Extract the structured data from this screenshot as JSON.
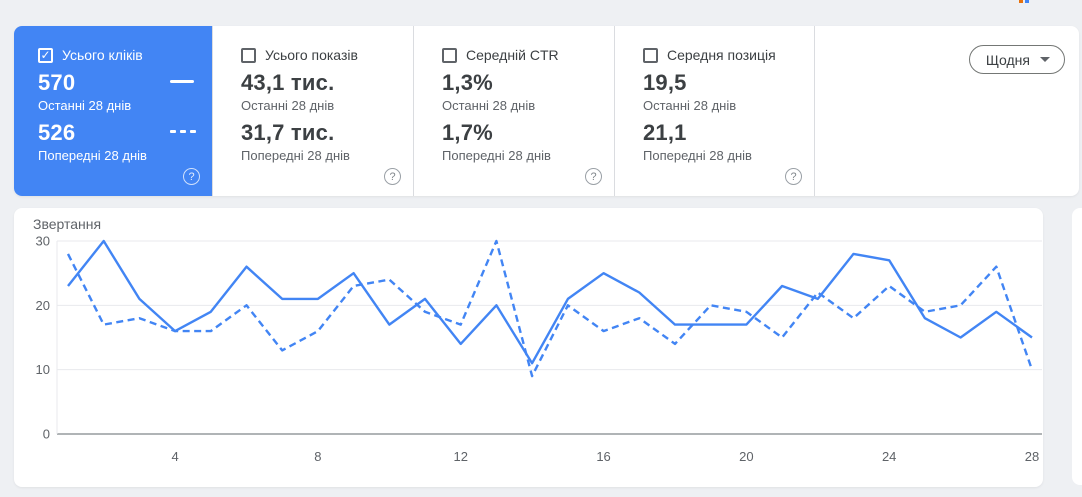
{
  "header_fragment": {
    "colors": [
      "#e8710a",
      "#4285f4"
    ]
  },
  "metrics": {
    "cards": [
      {
        "id": "total-clicks",
        "label": "Усього кліків",
        "checked": true,
        "selected": true,
        "value1": "570",
        "caption1": "Останні 28 днів",
        "value2": "526",
        "caption2": "Попередні 28 днів",
        "help_icon": "?",
        "accent": "#4285f4"
      },
      {
        "id": "total-impressions",
        "label": "Усього показів",
        "checked": false,
        "selected": false,
        "value1": "43,1 тис.",
        "caption1": "Останні 28 днів",
        "value2": "31,7 тис.",
        "caption2": "Попередні 28 днів",
        "help_icon": "?"
      },
      {
        "id": "average-ctr",
        "label": "Середній CTR",
        "checked": false,
        "selected": false,
        "value1": "1,3%",
        "caption1": "Останні 28 днів",
        "value2": "1,7%",
        "caption2": "Попередні 28 днів",
        "help_icon": "?"
      },
      {
        "id": "average-position",
        "label": "Середня позиція",
        "checked": false,
        "selected": false,
        "value1": "19,5",
        "caption1": "Останні 28 днів",
        "value2": "21,1",
        "caption2": "Попередні 28 днів",
        "help_icon": "?"
      }
    ],
    "checkmark": "✓",
    "granularity_button": {
      "label": "Щодня",
      "icon": "chevron-down"
    }
  },
  "chart_data": {
    "type": "line",
    "title": "Звертання",
    "x_range": [
      1,
      28
    ],
    "xticks": [
      4,
      8,
      12,
      16,
      20,
      24,
      28
    ],
    "yticks": [
      0,
      10,
      20,
      30
    ],
    "ylim": [
      0,
      30
    ],
    "grid": true,
    "line_color": "#4285f4",
    "series": [
      {
        "name": "Останні 28 днів",
        "style": "solid",
        "values": [
          23,
          30,
          21,
          16,
          19,
          26,
          21,
          21,
          25,
          17,
          21,
          14,
          20,
          11,
          21,
          25,
          22,
          17,
          17,
          17,
          23,
          21,
          28,
          27,
          18,
          15,
          19,
          15
        ]
      },
      {
        "name": "Попередні 28 днів",
        "style": "dashed",
        "values": [
          28,
          17,
          18,
          16,
          16,
          20,
          13,
          16,
          23,
          24,
          19,
          17,
          30,
          9,
          20,
          16,
          18,
          14,
          20,
          19,
          15,
          22,
          18,
          23,
          19,
          20,
          26,
          10
        ]
      }
    ]
  }
}
